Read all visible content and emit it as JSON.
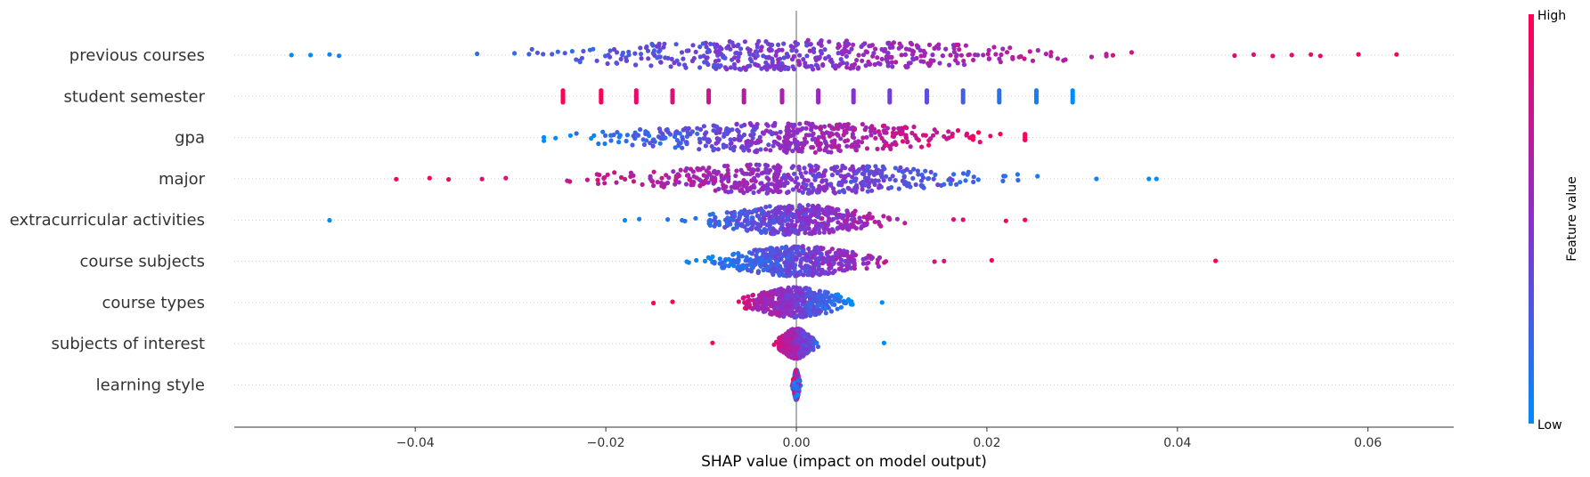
{
  "chart_data": {
    "type": "scatter",
    "subtype": "shap-beeswarm",
    "xlabel": "SHAP value (impact on model output)",
    "xlim": [
      -0.059,
      0.069
    ],
    "xticks": [
      {
        "value": -0.04,
        "label": "−0.04"
      },
      {
        "value": -0.02,
        "label": "−0.02"
      },
      {
        "value": 0.0,
        "label": "0.00"
      },
      {
        "value": 0.02,
        "label": "0.02"
      },
      {
        "value": 0.04,
        "label": "0.04"
      },
      {
        "value": 0.06,
        "label": "0.06"
      }
    ],
    "grid": false,
    "colorbar": {
      "title": "Feature value",
      "high_label": "High",
      "low_label": "Low",
      "low_color": "#008bfb",
      "high_color": "#ff0052"
    },
    "features": [
      {
        "name": "previous courses",
        "kind": "continuous",
        "min": -0.053,
        "max": 0.063,
        "density_sd": 0.018,
        "trend": "increasing",
        "outliers": [
          -0.053,
          -0.051,
          -0.049,
          -0.048,
          0.046,
          0.048,
          0.05,
          0.052,
          0.054,
          0.055,
          0.059,
          0.063
        ]
      },
      {
        "name": "student semester",
        "kind": "discrete",
        "points": [
          {
            "x": -0.0245,
            "v": 1.0
          },
          {
            "x": -0.0205,
            "v": 0.97
          },
          {
            "x": -0.0168,
            "v": 0.9
          },
          {
            "x": -0.013,
            "v": 0.83
          },
          {
            "x": -0.0092,
            "v": 0.76
          },
          {
            "x": -0.0055,
            "v": 0.68
          },
          {
            "x": -0.0015,
            "v": 0.62
          },
          {
            "x": 0.0023,
            "v": 0.55
          },
          {
            "x": 0.006,
            "v": 0.48
          },
          {
            "x": 0.0098,
            "v": 0.41
          },
          {
            "x": 0.0137,
            "v": 0.33
          },
          {
            "x": 0.0175,
            "v": 0.24
          },
          {
            "x": 0.0213,
            "v": 0.14
          },
          {
            "x": 0.0252,
            "v": 0.06
          },
          {
            "x": 0.029,
            "v": 0.0
          }
        ]
      },
      {
        "name": "gpa",
        "kind": "continuous",
        "min": -0.0265,
        "max": 0.024,
        "density_sd": 0.014,
        "trend": "increasing",
        "cluster": {
          "x": -0.001,
          "v": 0.55
        }
      },
      {
        "name": "major",
        "kind": "continuous",
        "min": -0.042,
        "max": 0.038,
        "density_sd": 0.013,
        "trend": "decreasing",
        "cluster": {
          "x": -0.002,
          "v": 0.55
        },
        "outliers": [
          -0.042,
          -0.0385,
          -0.0365,
          -0.033,
          -0.0305,
          0.0315,
          0.037,
          0.0378
        ]
      },
      {
        "name": "extracurricular activities",
        "kind": "continuous",
        "min": -0.018,
        "max": 0.024,
        "density_sd": 0.006,
        "trend": "increasing",
        "outliers": [
          -0.049,
          -0.018,
          -0.0165,
          -0.0135,
          -0.012,
          0.0165,
          0.0175,
          0.022,
          0.024
        ]
      },
      {
        "name": "course subjects",
        "kind": "continuous",
        "min": -0.0115,
        "max": 0.0205,
        "density_sd": 0.0055,
        "trend": "increasing",
        "outliers": [
          -0.0115,
          -0.0105,
          0.0145,
          0.0155,
          0.0205,
          0.044
        ]
      },
      {
        "name": "course types",
        "kind": "continuous",
        "min": -0.009,
        "max": 0.0065,
        "density_sd": 0.0035,
        "trend": "decreasing",
        "outliers": [
          -0.015,
          -0.013,
          0.009
        ]
      },
      {
        "name": "subjects of interest",
        "kind": "continuous",
        "min": -0.003,
        "max": 0.0035,
        "density_sd": 0.0012,
        "trend": "decreasing",
        "outliers": [
          -0.0088,
          0.0092
        ]
      },
      {
        "name": "learning style",
        "kind": "continuous",
        "min": -0.0005,
        "max": 0.0005,
        "density_sd": 0.0002,
        "trend": "mixed"
      }
    ]
  }
}
